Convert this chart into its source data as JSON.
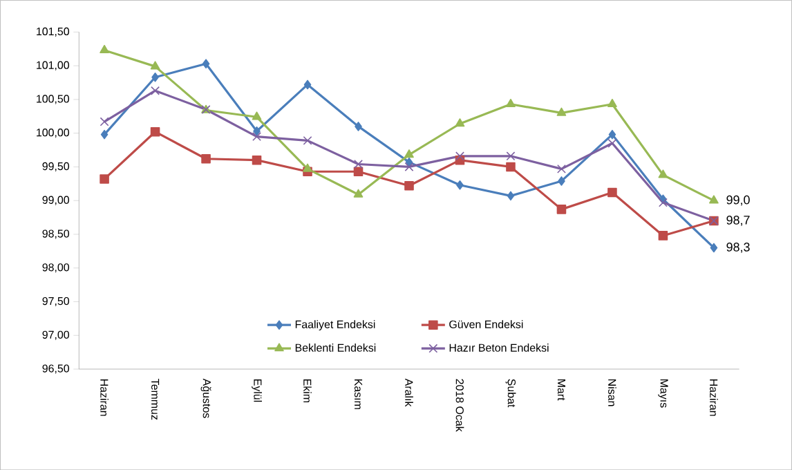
{
  "chart_data": {
    "type": "line",
    "categories": [
      "Haziran",
      "Temmuz",
      "Ağustos",
      "Eylül",
      "Ekim",
      "Kasım",
      "Aralık",
      "2018 Ocak",
      "Şubat",
      "Mart",
      "Nisan",
      "Mayıs",
      "Haziran"
    ],
    "series": [
      {
        "name": "Faaliyet Endeksi",
        "color": "#4a7ebb",
        "marker": "diamond",
        "values": [
          99.98,
          100.83,
          101.03,
          100.03,
          100.72,
          100.1,
          99.57,
          99.23,
          99.07,
          99.29,
          99.98,
          99.02,
          98.3
        ],
        "value_labels": [
          null,
          null,
          null,
          null,
          null,
          null,
          null,
          null,
          null,
          null,
          null,
          null,
          "98,3"
        ]
      },
      {
        "name": "Güven Endeksi",
        "color": "#be4b48",
        "marker": "square",
        "values": [
          99.32,
          100.02,
          99.62,
          99.6,
          99.43,
          99.43,
          99.22,
          99.6,
          99.5,
          98.87,
          99.12,
          98.48,
          98.7
        ],
        "value_labels": [
          null,
          null,
          null,
          null,
          null,
          null,
          null,
          null,
          null,
          null,
          null,
          null,
          "98,7"
        ]
      },
      {
        "name": "Beklenti Endeksi",
        "color": "#98b954",
        "marker": "triangle",
        "values": [
          101.23,
          100.99,
          100.34,
          100.24,
          99.47,
          99.09,
          99.68,
          100.14,
          100.43,
          100.3,
          100.43,
          99.38,
          99.0
        ],
        "value_labels": [
          null,
          null,
          null,
          null,
          null,
          null,
          null,
          null,
          null,
          null,
          null,
          null,
          "99,0"
        ]
      },
      {
        "name": "Hazır Beton Endeksi",
        "color": "#7d60a0",
        "marker": "cross",
        "values": [
          100.17,
          100.63,
          100.35,
          99.95,
          99.89,
          99.54,
          99.5,
          99.66,
          99.66,
          99.47,
          99.85,
          98.97,
          98.7
        ]
      }
    ],
    "ylim": [
      96.5,
      101.5
    ],
    "yticks": [
      {
        "value": 96.5,
        "label": "96,50"
      },
      {
        "value": 97,
        "label": "97,00"
      },
      {
        "value": 97.5,
        "label": "97,50"
      },
      {
        "value": 98,
        "label": "98,00"
      },
      {
        "value": 98.5,
        "label": "98,50"
      },
      {
        "value": 99,
        "label": "99,00"
      },
      {
        "value": 99.5,
        "label": "99,50"
      },
      {
        "value": 100,
        "label": "100,00"
      },
      {
        "value": 100.5,
        "label": "100,50"
      },
      {
        "value": 101,
        "label": "101,00"
      },
      {
        "value": 101.5,
        "label": "101,50"
      }
    ],
    "grid": false,
    "legend": "bottom",
    "line_style": "solid"
  }
}
